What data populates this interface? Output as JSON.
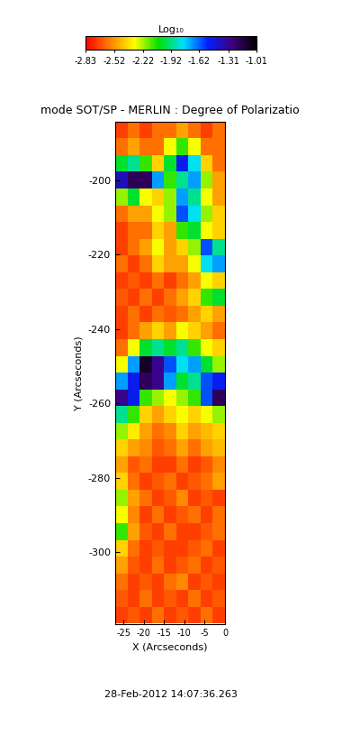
{
  "chart_data": {
    "type": "heatmap",
    "title": "mode SOT/SP - MERLIN : Degree of Polarizatio",
    "x_label": "X (Arcseconds)",
    "y_label": "Y (Arcseconds)",
    "colorbar_label": "Log₁₀",
    "footer": "28-Feb-2012 14:07:36.263",
    "xlim": [
      -27,
      0
    ],
    "ylim": [
      -319.4,
      -184.2
    ],
    "xticks": [
      -25,
      -20,
      -15,
      -10,
      -5,
      0
    ],
    "yticks": [
      -300,
      -280,
      -260,
      -240,
      -220,
      -200
    ],
    "color_range": [
      -2.83,
      -1.01
    ],
    "color_ticks": [
      -2.83,
      -2.52,
      -2.22,
      -1.92,
      -1.62,
      -1.31,
      -1.01
    ],
    "x": [
      -25.5,
      -22.5,
      -19.5,
      -16.5,
      -13.5,
      -10.5,
      -7.5,
      -4.5,
      -1.5
    ],
    "y": [
      -317,
      -312.5,
      -308,
      -303.5,
      -299,
      -294.5,
      -290,
      -285.5,
      -281,
      -276.5,
      -272,
      -267.5,
      -263,
      -258.5,
      -254,
      -249.5,
      -245,
      -240.5,
      -236,
      -231.5,
      -227,
      -222.5,
      -218,
      -213.5,
      -209,
      -204.5,
      -200,
      -195.5,
      -191,
      -186.5
    ],
    "cells": [
      [
        -2.7,
        -2.65,
        -2.7,
        -2.6,
        -2.7,
        -2.65,
        -2.7,
        -2.6,
        -2.7
      ],
      [
        -2.65,
        -2.7,
        -2.6,
        -2.7,
        -2.65,
        -2.7,
        -2.6,
        -2.7,
        -2.65
      ],
      [
        -2.6,
        -2.7,
        -2.65,
        -2.7,
        -2.6,
        -2.55,
        -2.7,
        -2.65,
        -2.7
      ],
      [
        -2.5,
        -2.65,
        -2.7,
        -2.6,
        -2.7,
        -2.65,
        -2.6,
        -2.7,
        -2.65
      ],
      [
        -2.4,
        -2.6,
        -2.7,
        -2.65,
        -2.7,
        -2.7,
        -2.65,
        -2.6,
        -2.7
      ],
      [
        -2.1,
        -2.5,
        -2.65,
        -2.7,
        -2.6,
        -2.7,
        -2.7,
        -2.65,
        -2.6
      ],
      [
        -2.3,
        -2.55,
        -2.7,
        -2.6,
        -2.7,
        -2.65,
        -2.6,
        -2.7,
        -2.6
      ],
      [
        -2.2,
        -2.5,
        -2.6,
        -2.7,
        -2.65,
        -2.55,
        -2.7,
        -2.65,
        -2.7
      ],
      [
        -2.4,
        -2.6,
        -2.7,
        -2.65,
        -2.6,
        -2.7,
        -2.65,
        -2.6,
        -2.5
      ],
      [
        -2.5,
        -2.65,
        -2.6,
        -2.7,
        -2.7,
        -2.6,
        -2.7,
        -2.65,
        -2.55
      ],
      [
        -2.4,
        -2.5,
        -2.55,
        -2.65,
        -2.6,
        -2.5,
        -2.6,
        -2.5,
        -2.45
      ],
      [
        -2.2,
        -2.35,
        -2.5,
        -2.6,
        -2.55,
        -2.4,
        -2.5,
        -2.45,
        -2.4
      ],
      [
        -1.9,
        -2.1,
        -2.4,
        -2.5,
        -2.4,
        -2.3,
        -2.4,
        -2.3,
        -2.2
      ],
      [
        -1.3,
        -1.5,
        -2.1,
        -2.2,
        -2.3,
        -2.2,
        -2.1,
        -1.6,
        -1.2
      ],
      [
        -1.7,
        -1.5,
        -1.2,
        -1.3,
        -1.7,
        -2.0,
        -1.9,
        -1.6,
        -1.5
      ],
      [
        -2.3,
        -1.7,
        -1.1,
        -1.3,
        -1.6,
        -1.8,
        -1.7,
        -2.0,
        -2.2
      ],
      [
        -2.6,
        -2.3,
        -2.0,
        -1.9,
        -2.0,
        -1.9,
        -2.1,
        -2.3,
        -2.4
      ],
      [
        -2.7,
        -2.6,
        -2.5,
        -2.4,
        -2.5,
        -2.3,
        -2.4,
        -2.5,
        -2.6
      ],
      [
        -2.7,
        -2.6,
        -2.7,
        -2.6,
        -2.65,
        -2.6,
        -2.5,
        -2.4,
        -2.5
      ],
      [
        -2.65,
        -2.7,
        -2.6,
        -2.7,
        -2.6,
        -2.5,
        -2.4,
        -2.1,
        -2.0
      ],
      [
        -2.7,
        -2.65,
        -2.7,
        -2.6,
        -2.7,
        -2.6,
        -2.5,
        -2.3,
        -2.4
      ],
      [
        -2.6,
        -2.7,
        -2.6,
        -2.4,
        -2.5,
        -2.5,
        -2.3,
        -1.8,
        -1.7
      ],
      [
        -2.7,
        -2.6,
        -2.5,
        -2.3,
        -2.5,
        -2.4,
        -2.2,
        -1.6,
        -1.9
      ],
      [
        -2.7,
        -2.6,
        -2.6,
        -2.4,
        -2.5,
        -2.1,
        -2.0,
        -2.3,
        -2.4
      ],
      [
        -2.6,
        -2.5,
        -2.5,
        -2.3,
        -2.2,
        -1.6,
        -1.8,
        -2.2,
        -2.4
      ],
      [
        -2.2,
        -2.0,
        -2.3,
        -2.4,
        -2.2,
        -1.7,
        -1.9,
        -2.3,
        -2.5
      ],
      [
        -1.4,
        -1.2,
        -1.2,
        -1.7,
        -2.1,
        -1.9,
        -1.7,
        -2.2,
        -2.5
      ],
      [
        -2.0,
        -1.9,
        -2.1,
        -2.4,
        -2.0,
        -1.5,
        -1.8,
        -2.4,
        -2.6
      ],
      [
        -2.6,
        -2.5,
        -2.6,
        -2.6,
        -2.3,
        -2.1,
        -2.3,
        -2.6,
        -2.6
      ],
      [
        -2.7,
        -2.6,
        -2.7,
        -2.6,
        -2.6,
        -2.5,
        -2.6,
        -2.7,
        -2.6
      ]
    ]
  }
}
